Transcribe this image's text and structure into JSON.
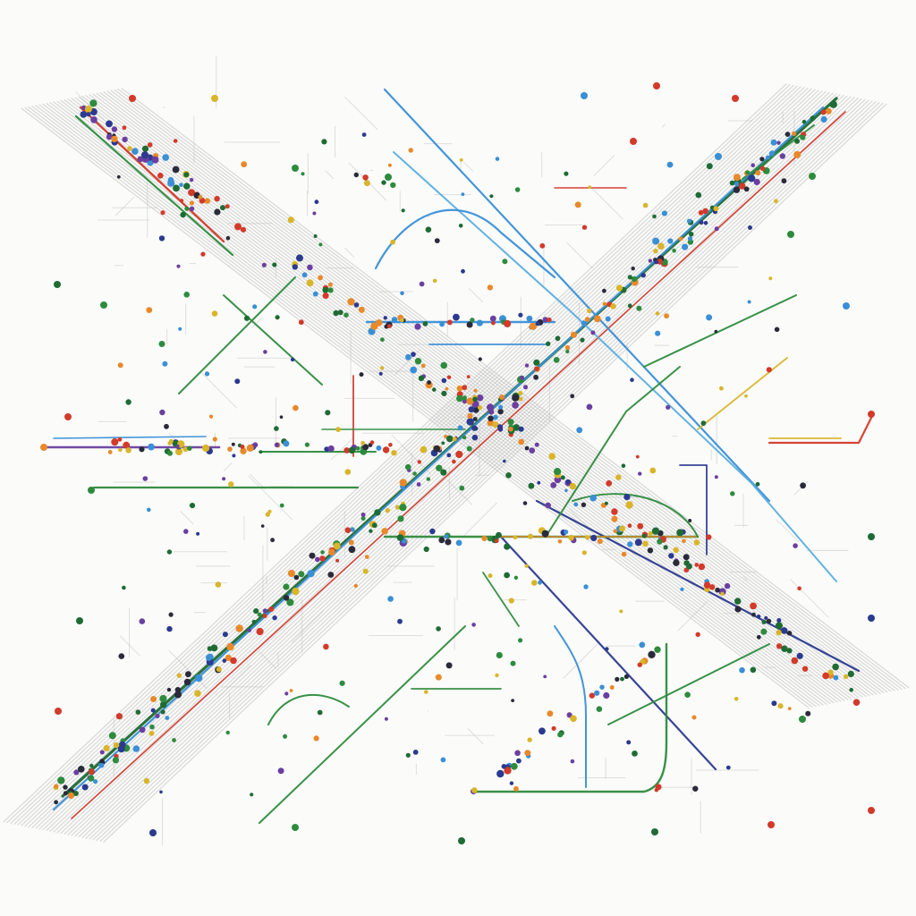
{
  "diagram": {
    "type": "abstract transit network",
    "background": "#fbfbfa",
    "palette": {
      "green": "#2e8b3d",
      "dark_green": "#1f6b34",
      "blue": "#3a8fd6",
      "light_blue": "#5aaee0",
      "navy": "#2b3a8f",
      "red": "#d23a2a",
      "orange": "#e8892a",
      "yellow": "#d9b52a",
      "purple": "#6a3fa0",
      "gray": "#bcbcbc",
      "dark": "#2a2a3a"
    },
    "text_labels": []
  }
}
